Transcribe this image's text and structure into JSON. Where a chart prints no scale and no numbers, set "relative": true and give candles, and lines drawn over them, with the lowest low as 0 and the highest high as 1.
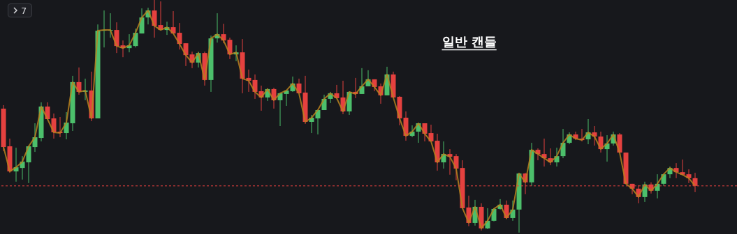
{
  "chart_data": {
    "type": "candlestick",
    "title": "일반 캔들",
    "relative": true,
    "annotations": [
      "7"
    ],
    "categories": [
      null,
      null,
      null,
      null,
      null,
      null,
      null,
      null,
      null,
      null,
      null,
      null,
      null,
      null,
      null,
      null,
      null,
      null,
      null,
      null,
      null,
      null,
      null,
      null,
      null,
      null,
      null,
      null,
      null,
      null,
      null,
      null,
      null,
      null,
      null,
      null,
      null,
      null,
      null,
      null,
      null,
      null,
      null,
      null,
      null,
      null,
      null,
      null,
      null,
      null,
      null,
      null,
      null,
      null,
      null,
      null,
      null,
      null,
      null,
      null,
      null,
      null,
      null,
      null,
      null,
      null,
      null,
      null,
      null,
      null,
      null,
      null,
      null,
      null,
      null,
      null,
      null,
      null,
      null,
      null,
      null,
      null,
      null,
      null,
      null,
      null,
      null,
      null,
      null,
      null,
      null,
      null,
      null,
      null,
      null,
      null,
      null,
      null,
      null,
      null,
      null,
      null,
      null,
      null,
      null,
      null,
      null,
      null,
      null,
      null,
      null
    ],
    "ohlc": [
      [
        0.533,
        0.548,
        0.35,
        0.368
      ],
      [
        0.371,
        0.404,
        0.257,
        0.263
      ],
      [
        0.263,
        0.365,
        0.219,
        0.281
      ],
      [
        0.278,
        0.329,
        0.228,
        0.305
      ],
      [
        0.302,
        0.371,
        0.213,
        0.371
      ],
      [
        0.368,
        0.47,
        0.347,
        0.41
      ],
      [
        0.407,
        0.56,
        0.392,
        0.542
      ],
      [
        0.542,
        0.56,
        0.488,
        0.488
      ],
      [
        0.491,
        0.512,
        0.404,
        0.431
      ],
      [
        0.434,
        0.497,
        0.41,
        0.428
      ],
      [
        0.428,
        0.518,
        0.401,
        0.473
      ],
      [
        0.47,
        0.674,
        0.437,
        0.647
      ],
      [
        0.647,
        0.71,
        0.593,
        0.605
      ],
      [
        0.605,
        0.662,
        0.569,
        0.611
      ],
      [
        0.611,
        0.692,
        0.479,
        0.491
      ],
      [
        0.491,
        0.895,
        0.491,
        0.868
      ],
      [
        0.868,
        0.955,
        0.796,
        0.871
      ],
      [
        0.868,
        0.943,
        0.838,
        0.871
      ],
      [
        0.871,
        0.904,
        0.772,
        0.802
      ],
      [
        0.805,
        0.826,
        0.754,
        0.793
      ],
      [
        0.793,
        0.853,
        0.775,
        0.805
      ],
      [
        0.802,
        0.877,
        0.796,
        0.859
      ],
      [
        0.856,
        0.964,
        0.856,
        0.925
      ],
      [
        0.925,
        0.967,
        0.895,
        0.955
      ],
      [
        0.955,
        1.0,
        0.838,
        0.889
      ],
      [
        0.892,
        0.994,
        0.871,
        0.871
      ],
      [
        0.871,
        0.907,
        0.85,
        0.883
      ],
      [
        0.883,
        0.952,
        0.856,
        0.856
      ],
      [
        0.859,
        0.901,
        0.787,
        0.811
      ],
      [
        0.814,
        0.814,
        0.716,
        0.763
      ],
      [
        0.766,
        0.778,
        0.707,
        0.731
      ],
      [
        0.731,
        0.778,
        0.71,
        0.772
      ],
      [
        0.772,
        0.778,
        0.632,
        0.656
      ],
      [
        0.656,
        0.847,
        0.605,
        0.835
      ],
      [
        0.835,
        0.943,
        0.817,
        0.853
      ],
      [
        0.853,
        0.898,
        0.814,
        0.826
      ],
      [
        0.829,
        0.838,
        0.746,
        0.766
      ],
      [
        0.766,
        0.805,
        0.737,
        0.775
      ],
      [
        0.775,
        0.832,
        0.599,
        0.662
      ],
      [
        0.665,
        0.701,
        0.605,
        0.653
      ],
      [
        0.656,
        0.68,
        0.575,
        0.605
      ],
      [
        0.608,
        0.632,
        0.524,
        0.581
      ],
      [
        0.581,
        0.62,
        0.566,
        0.617
      ],
      [
        0.617,
        0.623,
        0.533,
        0.569
      ],
      [
        0.569,
        0.599,
        0.458,
        0.599
      ],
      [
        0.596,
        0.611,
        0.545,
        0.611
      ],
      [
        0.608,
        0.671,
        0.605,
        0.641
      ],
      [
        0.641,
        0.662,
        0.599,
        0.599
      ],
      [
        0.602,
        0.674,
        0.467,
        0.476
      ],
      [
        0.476,
        0.506,
        0.428,
        0.494
      ],
      [
        0.491,
        0.527,
        0.422,
        0.527
      ],
      [
        0.527,
        0.593,
        0.527,
        0.575
      ],
      [
        0.575,
        0.605,
        0.557,
        0.599
      ],
      [
        0.599,
        0.635,
        0.578,
        0.578
      ],
      [
        0.581,
        0.653,
        0.509,
        0.521
      ],
      [
        0.521,
        0.608,
        0.506,
        0.605
      ],
      [
        0.605,
        0.665,
        0.578,
        0.596
      ],
      [
        0.596,
        0.707,
        0.596,
        0.629
      ],
      [
        0.629,
        0.698,
        0.629,
        0.659
      ],
      [
        0.659,
        0.659,
        0.608,
        0.626
      ],
      [
        0.629,
        0.641,
        0.554,
        0.59
      ],
      [
        0.59,
        0.713,
        0.59,
        0.68
      ],
      [
        0.68,
        0.692,
        0.581,
        0.581
      ],
      [
        0.584,
        0.587,
        0.461,
        0.491
      ],
      [
        0.494,
        0.521,
        0.395,
        0.416
      ],
      [
        0.416,
        0.461,
        0.41,
        0.434
      ],
      [
        0.434,
        0.47,
        0.386,
        0.47
      ],
      [
        0.47,
        0.47,
        0.392,
        0.425
      ],
      [
        0.428,
        0.464,
        0.392,
        0.392
      ],
      [
        0.395,
        0.425,
        0.266,
        0.302
      ],
      [
        0.302,
        0.392,
        0.275,
        0.338
      ],
      [
        0.338,
        0.359,
        0.249,
        0.326
      ],
      [
        0.329,
        0.338,
        0.225,
        0.275
      ],
      [
        0.278,
        0.311,
        0.105,
        0.105
      ],
      [
        0.108,
        0.159,
        0.027,
        0.042
      ],
      [
        0.042,
        0.141,
        0.03,
        0.111
      ],
      [
        0.111,
        0.126,
        0.009,
        0.018
      ],
      [
        0.018,
        0.105,
        0.015,
        0.051
      ],
      [
        0.051,
        0.105,
        0.048,
        0.102
      ],
      [
        0.102,
        0.144,
        0.099,
        0.12
      ],
      [
        0.12,
        0.138,
        0.057,
        0.063
      ],
      [
        0.063,
        0.138,
        0.051,
        0.099
      ],
      [
        0.099,
        0.257,
        0.0,
        0.254
      ],
      [
        0.254,
        0.257,
        0.165,
        0.216
      ],
      [
        0.216,
        0.386,
        0.201,
        0.356
      ],
      [
        0.356,
        0.362,
        0.311,
        0.338
      ],
      [
        0.338,
        0.404,
        0.284,
        0.32
      ],
      [
        0.32,
        0.362,
        0.29,
        0.302
      ],
      [
        0.302,
        0.365,
        0.284,
        0.329
      ],
      [
        0.329,
        0.446,
        0.32,
        0.386
      ],
      [
        0.386,
        0.431,
        0.38,
        0.422
      ],
      [
        0.422,
        0.434,
        0.398,
        0.404
      ],
      [
        0.404,
        0.446,
        0.392,
        0.398
      ],
      [
        0.401,
        0.488,
        0.38,
        0.431
      ],
      [
        0.431,
        0.458,
        0.374,
        0.413
      ],
      [
        0.413,
        0.434,
        0.344,
        0.359
      ],
      [
        0.359,
        0.419,
        0.305,
        0.383
      ],
      [
        0.383,
        0.434,
        0.374,
        0.422
      ],
      [
        0.422,
        0.428,
        0.344,
        0.344
      ],
      [
        0.344,
        0.344,
        0.21,
        0.21
      ],
      [
        0.21,
        0.21,
        0.165,
        0.189
      ],
      [
        0.189,
        0.204,
        0.126,
        0.153
      ],
      [
        0.153,
        0.219,
        0.132,
        0.207
      ],
      [
        0.207,
        0.216,
        0.168,
        0.18
      ],
      [
        0.18,
        0.251,
        0.147,
        0.21
      ],
      [
        0.21,
        0.251,
        0.201,
        0.251
      ],
      [
        0.251,
        0.284,
        0.234,
        0.278
      ],
      [
        0.278,
        0.299,
        0.234,
        0.26
      ],
      [
        0.26,
        0.314,
        0.246,
        0.249
      ],
      [
        0.251,
        0.272,
        0.213,
        0.234
      ],
      [
        0.234,
        0.257,
        0.174,
        0.201
      ]
    ],
    "colors": [
      "#e5413f",
      "#e5413f",
      "#4cbf6b",
      "#4cbf6b",
      "#4cbf6b",
      "#4cbf6b",
      "#4cbf6b",
      "#e5413f",
      "#e5413f",
      "#e5413f",
      "#4cbf6b",
      "#4cbf6b",
      "#e5413f",
      "#4cbf6b",
      "#e5413f",
      "#4cbf6b",
      "#4cbf6b",
      "#4cbf6b",
      "#e5413f",
      "#e5413f",
      "#4cbf6b",
      "#4cbf6b",
      "#4cbf6b",
      "#4cbf6b",
      "#e5413f",
      "#e5413f",
      "#4cbf6b",
      "#e5413f",
      "#e5413f",
      "#e5413f",
      "#e5413f",
      "#4cbf6b",
      "#e5413f",
      "#4cbf6b",
      "#4cbf6b",
      "#e5413f",
      "#e5413f",
      "#4cbf6b",
      "#e5413f",
      "#e5413f",
      "#e5413f",
      "#e5413f",
      "#4cbf6b",
      "#e5413f",
      "#4cbf6b",
      "#4cbf6b",
      "#4cbf6b",
      "#e5413f",
      "#e5413f",
      "#4cbf6b",
      "#4cbf6b",
      "#4cbf6b",
      "#4cbf6b",
      "#e5413f",
      "#e5413f",
      "#4cbf6b",
      "#e5413f",
      "#4cbf6b",
      "#4cbf6b",
      "#e5413f",
      "#e5413f",
      "#4cbf6b",
      "#e5413f",
      "#e5413f",
      "#e5413f",
      "#4cbf6b",
      "#4cbf6b",
      "#e5413f",
      "#e5413f",
      "#e5413f",
      "#4cbf6b",
      "#e5413f",
      "#e5413f",
      "#e5413f",
      "#e5413f",
      "#4cbf6b",
      "#e5413f",
      "#4cbf6b",
      "#4cbf6b",
      "#4cbf6b",
      "#e5413f",
      "#4cbf6b",
      "#4cbf6b",
      "#e5413f",
      "#4cbf6b",
      "#e5413f",
      "#e5413f",
      "#e5413f",
      "#4cbf6b",
      "#4cbf6b",
      "#4cbf6b",
      "#e5413f",
      "#e5413f",
      "#4cbf6b",
      "#e5413f",
      "#e5413f",
      "#4cbf6b",
      "#4cbf6b",
      "#e5413f",
      "#e5413f",
      "#e5413f",
      "#e5413f",
      "#4cbf6b",
      "#e5413f",
      "#4cbf6b",
      "#4cbf6b",
      "#4cbf6b",
      "#e5413f",
      "#e5413f",
      "#e5413f",
      "#e5413f"
    ],
    "series": [
      {
        "type": "line",
        "color": "#b8831f",
        "values": [
          0.368,
          0.263,
          0.281,
          0.305,
          0.371,
          0.41,
          0.542,
          0.488,
          0.431,
          0.428,
          0.473,
          0.647,
          0.605,
          0.611,
          0.491,
          0.868,
          0.871,
          0.871,
          0.802,
          0.793,
          0.805,
          0.859,
          0.925,
          0.955,
          0.889,
          0.871,
          0.883,
          0.856,
          0.811,
          0.763,
          0.731,
          0.772,
          0.656,
          0.835,
          0.853,
          0.826,
          0.766,
          0.775,
          0.662,
          0.653,
          0.605,
          0.581,
          0.617,
          0.569,
          0.599,
          0.611,
          0.641,
          0.599,
          0.476,
          0.494,
          0.527,
          0.575,
          0.599,
          0.578,
          0.521,
          0.605,
          0.596,
          0.629,
          0.659,
          0.626,
          0.59,
          0.68,
          0.581,
          0.491,
          0.416,
          0.434,
          0.47,
          0.425,
          0.392,
          0.302,
          0.338,
          0.326,
          0.275,
          0.105,
          0.042,
          0.111,
          0.018,
          0.051,
          0.102,
          0.12,
          0.063,
          0.099,
          0.254,
          0.216,
          0.356,
          0.338,
          0.32,
          0.302,
          0.329,
          0.386,
          0.422,
          0.404,
          0.398,
          0.431,
          0.413,
          0.359,
          0.383,
          0.422,
          0.344,
          0.21,
          0.189,
          0.153,
          0.207,
          0.18,
          0.21,
          0.251,
          0.278,
          0.26,
          0.249,
          0.234,
          0.201
        ]
      }
    ],
    "ref_lines": [
      {
        "axis": "y",
        "value": 0.201,
        "color": "#e5413f",
        "line_style": "dashed"
      }
    ]
  }
}
